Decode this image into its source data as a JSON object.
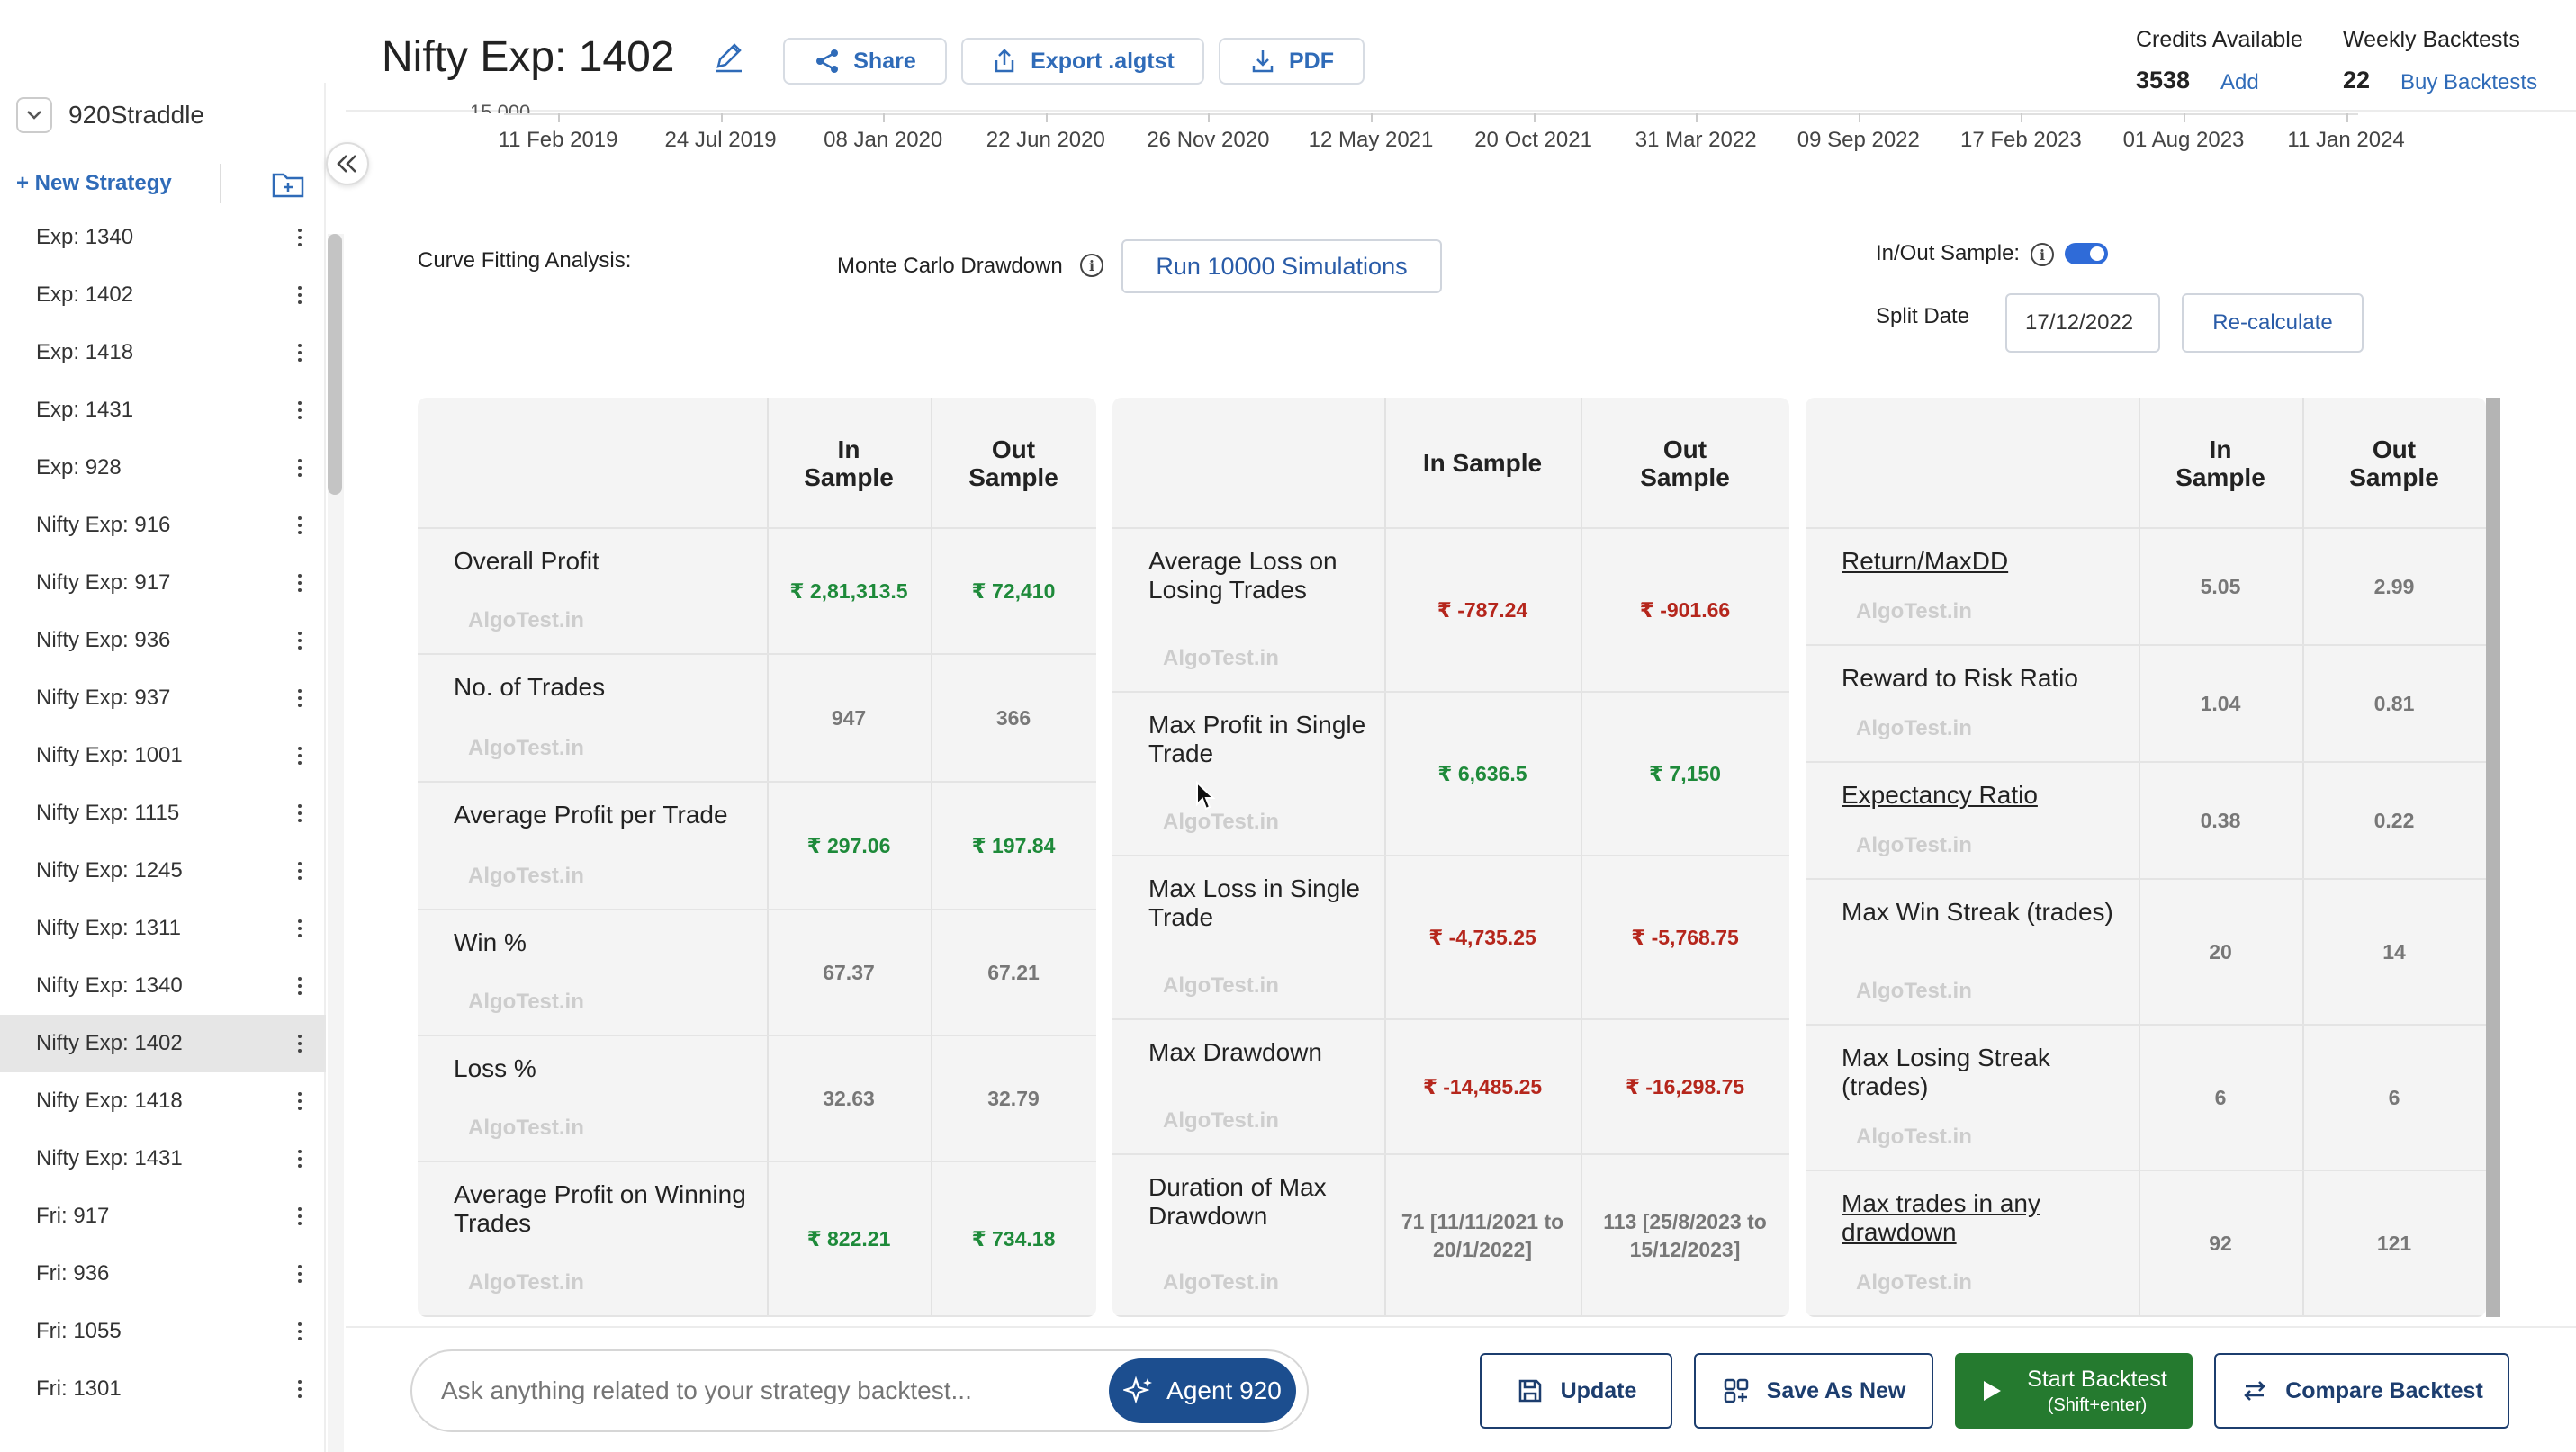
{
  "header": {
    "title": "Nifty Exp: 1402",
    "buttons": {
      "share": "Share",
      "export": "Export .algtst",
      "pdf": "PDF"
    },
    "credits": {
      "label": "Credits Available",
      "value": "3538",
      "add": "Add"
    },
    "weekly": {
      "label": "Weekly Backtests",
      "value": "22",
      "buy": "Buy Backtests"
    }
  },
  "sidebar": {
    "strategy": "920Straddle",
    "new_strategy": "+ New Strategy",
    "items": [
      {
        "label": "Exp: 1340"
      },
      {
        "label": "Exp: 1402"
      },
      {
        "label": "Exp: 1418"
      },
      {
        "label": "Exp: 1431"
      },
      {
        "label": "Exp: 928"
      },
      {
        "label": "Nifty Exp: 916"
      },
      {
        "label": "Nifty Exp: 917"
      },
      {
        "label": "Nifty Exp: 936"
      },
      {
        "label": "Nifty Exp: 937"
      },
      {
        "label": "Nifty Exp: 1001"
      },
      {
        "label": "Nifty Exp: 1115"
      },
      {
        "label": "Nifty Exp: 1245"
      },
      {
        "label": "Nifty Exp: 1311"
      },
      {
        "label": "Nifty Exp: 1340"
      },
      {
        "label": "Nifty Exp: 1402",
        "active": true
      },
      {
        "label": "Nifty Exp: 1418"
      },
      {
        "label": "Nifty Exp: 1431"
      },
      {
        "label": "Fri: 917"
      },
      {
        "label": "Fri: 936"
      },
      {
        "label": "Fri: 1055"
      },
      {
        "label": "Fri: 1301"
      }
    ]
  },
  "timeline": {
    "y_cut_label": "15,000",
    "ticks": [
      "11 Feb 2019",
      "24 Jul 2019",
      "08 Jan 2020",
      "22 Jun 2020",
      "26 Nov 2020",
      "12 May 2021",
      "20 Oct 2021",
      "31 Mar 2022",
      "09 Sep 2022",
      "17 Feb 2023",
      "01 Aug 2023",
      "11 Jan 2024"
    ]
  },
  "controls": {
    "curve_fitting": "Curve Fitting Analysis:",
    "monte_carlo": "Monte Carlo Drawdown",
    "run_btn": "Run 10000 Simulations",
    "in_out_label": "In/Out Sample:",
    "in_out_enabled": true,
    "split_label": "Split Date",
    "split_date": "17/12/2022",
    "recalc": "Re-calculate"
  },
  "watermark": "AlgoTest.in",
  "table_headers": {
    "in": "In\nSample",
    "out": "Out\nSample",
    "in_single": "In Sample"
  },
  "tables": {
    "t1": [
      {
        "metric": "Overall Profit",
        "in": "₹ 2,81,313.5",
        "out": "₹ 72,410",
        "tone": "pos"
      },
      {
        "metric": "No. of Trades",
        "in": "947",
        "out": "366",
        "tone": "neu"
      },
      {
        "metric": "Average Profit per Trade",
        "in": "₹ 297.06",
        "out": "₹ 197.84",
        "tone": "pos"
      },
      {
        "metric": "Win %",
        "in": "67.37",
        "out": "67.21",
        "tone": "neu"
      },
      {
        "metric": "Loss %",
        "in": "32.63",
        "out": "32.79",
        "tone": "neu"
      },
      {
        "metric": "Average Profit on Winning Trades",
        "in": "₹ 822.21",
        "out": "₹ 734.18",
        "tone": "pos"
      }
    ],
    "t2": [
      {
        "metric": "Average Loss on Losing Trades",
        "in": "₹ -787.24",
        "out": "₹ -901.66",
        "tone": "neg"
      },
      {
        "metric": "Max Profit in Single Trade",
        "in": "₹ 6,636.5",
        "out": "₹ 7,150",
        "tone": "pos"
      },
      {
        "metric": "Max Loss in Single Trade",
        "in": "₹ -4,735.25",
        "out": "₹ -5,768.75",
        "tone": "neg"
      },
      {
        "metric": "Max Drawdown",
        "in": "₹ -14,485.25",
        "out": "₹ -16,298.75",
        "tone": "neg"
      },
      {
        "metric": "Duration of Max Drawdown",
        "in": "71 [11/11/2021 to 20/1/2022]",
        "out": "113 [25/8/2023 to 15/12/2023]",
        "tone": "neu"
      }
    ],
    "t3": [
      {
        "metric": "Return/MaxDD",
        "in": "5.05",
        "out": "2.99",
        "tone": "neu",
        "link": true
      },
      {
        "metric": "Reward to Risk Ratio",
        "in": "1.04",
        "out": "0.81",
        "tone": "neu"
      },
      {
        "metric": "Expectancy Ratio",
        "in": "0.38",
        "out": "0.22",
        "tone": "neu",
        "link": true
      },
      {
        "metric": "Max Win Streak (trades)",
        "in": "20",
        "out": "14",
        "tone": "neu"
      },
      {
        "metric": "Max Losing Streak (trades)",
        "in": "6",
        "out": "6",
        "tone": "neu"
      },
      {
        "metric": "Max trades in any drawdown",
        "in": "92",
        "out": "121",
        "tone": "neu",
        "link": true
      }
    ]
  },
  "bottom": {
    "ask_placeholder": "Ask anything related to your strategy backtest...",
    "agent": "Agent 920",
    "update": "Update",
    "save_new": "Save As New",
    "start": "Start Backtest",
    "start_hint": "(Shift+enter)",
    "compare": "Compare Backtest"
  },
  "colors": {
    "accent": "#2f6bb8",
    "positive": "#1e8a3a",
    "negative": "#b5261c",
    "start": "#257a2f",
    "agent": "#1c4e8f"
  }
}
